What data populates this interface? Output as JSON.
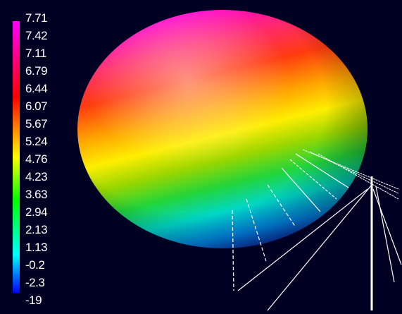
{
  "colorbar": {
    "ticks": [
      "7.71",
      "7.42",
      "7.11",
      "6.79",
      "6.44",
      "6.07",
      "5.67",
      "5.24",
      "4.76",
      "4.23",
      "3.63",
      "2.94",
      "2.13",
      "1.13",
      "-0.2",
      "-2.3",
      "-19"
    ],
    "gradient": [
      "#ff00ff",
      "#ff0000",
      "#ffff00",
      "#00ff00",
      "#00ffff",
      "#0000ff"
    ]
  },
  "colors": {
    "background": "#000022",
    "label": "#ffffff"
  }
}
